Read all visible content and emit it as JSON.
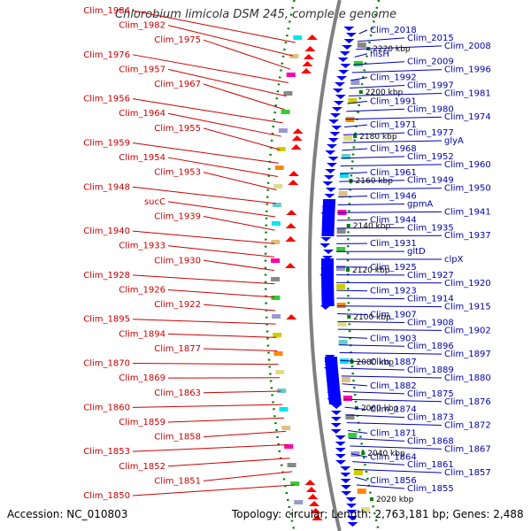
{
  "title": "Chlorobium limicola DSM 245, complete genome",
  "accession": "Accession: NC_010803",
  "topology": "Topology: circular; Length: 2,763,181 bp; Genes: 2,488",
  "colors": {
    "left_labels": "#cc0000",
    "right_labels": "#0000aa",
    "forward_genes": "#ff0000",
    "reverse_genes": "#0000ff",
    "ruler": "#808080",
    "tick_dots": "#008000"
  },
  "ruler_labels": [
    "2220 kbp",
    "2200 kbp",
    "2180 kbp",
    "2160 kbp",
    "2140 kbp",
    "2120 kbp",
    "2100 kbp",
    "2080 kbp",
    "2060 kbp",
    "2040 kbp",
    "2020 kbp"
  ],
  "left_labels": [
    "Clim_1984",
    "Clim_1982",
    "Clim_1975",
    "Clim_1976",
    "Clim_1957",
    "Clim_1967",
    "Clim_1956",
    "Clim_1964",
    "Clim_1955",
    "Clim_1959",
    "Clim_1954",
    "Clim_1953",
    "Clim_1948",
    "sucC",
    "Clim_1939",
    "Clim_1940",
    "Clim_1933",
    "Clim_1930",
    "Clim_1928",
    "Clim_1926",
    "Clim_1922",
    "Clim_1895",
    "Clim_1894",
    "Clim_1877",
    "Clim_1870",
    "Clim_1869",
    "Clim_1863",
    "Clim_1860",
    "Clim_1859",
    "Clim_1858",
    "Clim_1853",
    "Clim_1852",
    "Clim_1851",
    "Clim_1850"
  ],
  "right_labels": [
    "Clim_2018",
    "Clim_2015",
    "Clim_2008",
    "hisH",
    "Clim_2009",
    "Clim_1996",
    "Clim_1992",
    "Clim_1997",
    "Clim_1981",
    "Clim_1991",
    "Clim_1980",
    "Clim_1974",
    "Clim_1971",
    "Clim_1977",
    "glyA",
    "Clim_1968",
    "Clim_1952",
    "Clim_1960",
    "Clim_1961",
    "Clim_1949",
    "Clim_1950",
    "Clim_1946",
    "gpmA",
    "Clim_1941",
    "Clim_1944",
    "Clim_1935",
    "Clim_1937",
    "Clim_1931",
    "gltD",
    "clpX",
    "Clim_1925",
    "Clim_1927",
    "Clim_1920",
    "Clim_1923",
    "Clim_1914",
    "Clim_1915",
    "Clim_1907",
    "Clim_1908",
    "Clim_1902",
    "Clim_1903",
    "Clim_1896",
    "Clim_1897",
    "Clim_1887",
    "Clim_1889",
    "Clim_1880",
    "Clim_1882",
    "Clim_1875",
    "Clim_1876",
    "Clim_1874",
    "Clim_1873",
    "Clim_1872",
    "Clim_1871",
    "Clim_1868",
    "Clim_1867",
    "Clim_1864",
    "Clim_1861",
    "Clim_1857",
    "Clim_1856",
    "Clim_1855"
  ]
}
